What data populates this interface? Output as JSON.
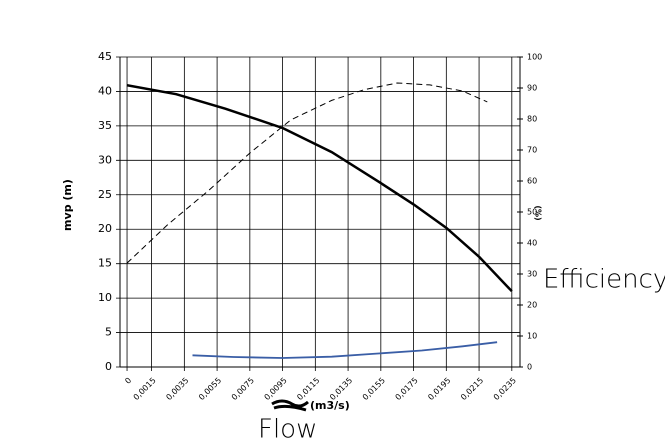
{
  "chart_data": {
    "type": "line",
    "ylabel": "mvp (m)",
    "xlabel": "(m3/s)",
    "y2label": "(%)",
    "annotations": [
      "Efficiency",
      "Flow"
    ],
    "xlim": [
      -0.00043,
      0.024
    ],
    "xticks": [
      {
        "value": 0,
        "label": "0"
      },
      {
        "value": 0.0015,
        "label": "0,0015"
      },
      {
        "value": 0.0035,
        "label": "0,0035"
      },
      {
        "value": 0.0055,
        "label": "0,0055"
      },
      {
        "value": 0.0075,
        "label": "0,0075"
      },
      {
        "value": 0.0095,
        "label": "0,0095"
      },
      {
        "value": 0.0115,
        "label": "0,0115"
      },
      {
        "value": 0.0135,
        "label": "0,0135"
      },
      {
        "value": 0.0155,
        "label": "0,0155"
      },
      {
        "value": 0.0175,
        "label": "0,0175"
      },
      {
        "value": 0.0195,
        "label": "0,0195"
      },
      {
        "value": 0.0215,
        "label": "0,0215"
      },
      {
        "value": 0.0235,
        "label": "0,0235"
      }
    ],
    "ylim": [
      0,
      45
    ],
    "yticks": [
      0,
      5,
      10,
      15,
      20,
      25,
      30,
      35,
      40,
      45
    ],
    "y2lim": [
      0,
      100
    ],
    "y2ticks": [
      0,
      10,
      20,
      30,
      40,
      50,
      60,
      70,
      80,
      90,
      100
    ],
    "grid": true,
    "series": [
      {
        "color": "#000000",
        "dashed": false,
        "axis": "y",
        "x": [
          0,
          0.003,
          0.006,
          0.0095,
          0.0125,
          0.0155,
          0.0175,
          0.0195,
          0.0215,
          0.0235
        ],
        "values": [
          40.9,
          39.6,
          37.5,
          34.7,
          31.2,
          26.7,
          23.6,
          20.2,
          16.0,
          11.0
        ]
      },
      {
        "color": "#000000",
        "dashed": true,
        "axis": "y2",
        "x": [
          0,
          0.0025,
          0.005,
          0.0075,
          0.01,
          0.0125,
          0.0145,
          0.0165,
          0.0185,
          0.0205,
          0.022
        ],
        "values": [
          33.5,
          46,
          57,
          69,
          79.7,
          86,
          89.5,
          91.6,
          91,
          89,
          85.5
        ]
      },
      {
        "color": "#3a5ea6",
        "dashed": false,
        "axis": "y",
        "x": [
          0.004,
          0.0065,
          0.0095,
          0.0125,
          0.015,
          0.018,
          0.0205,
          0.0226
        ],
        "values": [
          1.7,
          1.45,
          1.3,
          1.5,
          1.9,
          2.4,
          3.0,
          3.6
        ]
      }
    ]
  }
}
